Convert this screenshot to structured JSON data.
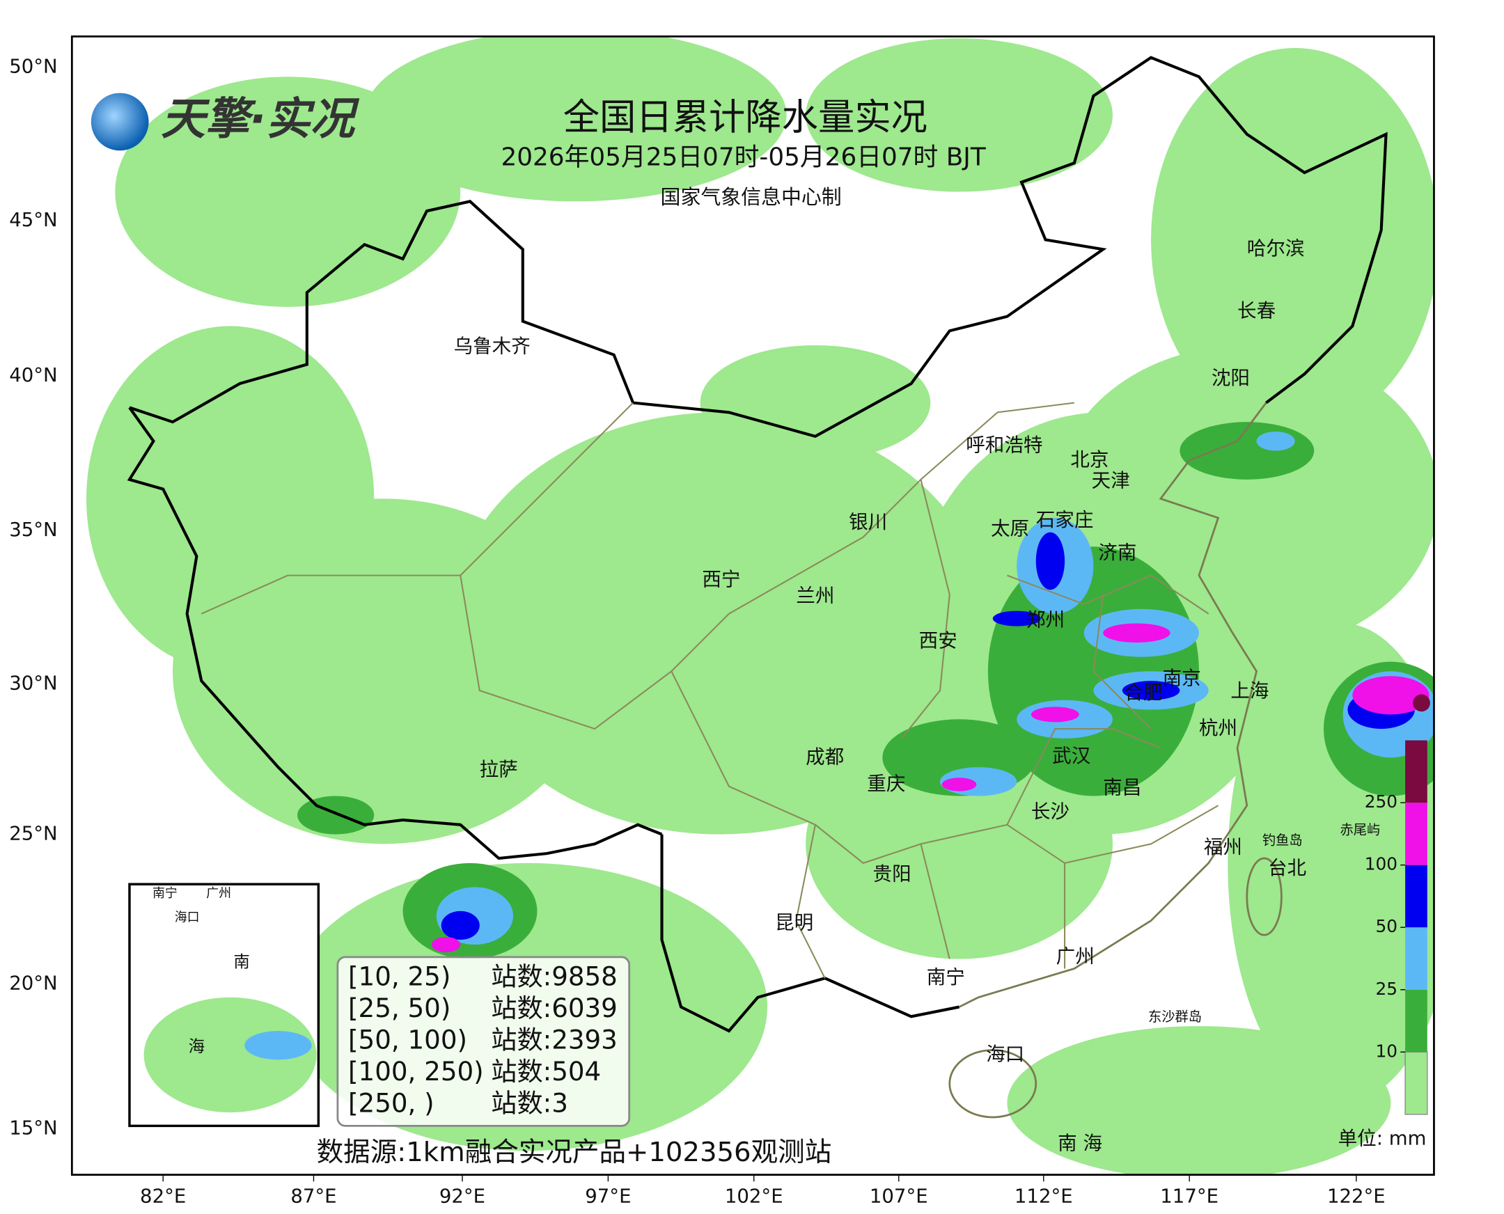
{
  "header": {
    "logo": "天擎·实况",
    "title": "全国日累计降水量实况",
    "subtitle": "2026年05月25日07时-05月26日07时 BJT",
    "credit": "国家气象信息中心制"
  },
  "axes": {
    "lat_labels": [
      "50°N",
      "45°N",
      "40°N",
      "35°N",
      "30°N",
      "25°N",
      "20°N",
      "15°N"
    ],
    "lon_labels": [
      "82°E",
      "87°E",
      "92°E",
      "97°E",
      "102°E",
      "107°E",
      "112°E",
      "117°E",
      "122°E"
    ]
  },
  "cities": [
    "乌鲁木齐",
    "哈尔滨",
    "长春",
    "沈阳",
    "呼和浩特",
    "北京",
    "天津",
    "银川",
    "太原",
    "石家庄",
    "济南",
    "西宁",
    "兰州",
    "郑州",
    "西安",
    "南京",
    "合肥",
    "上海",
    "杭州",
    "成都",
    "武汉",
    "拉萨",
    "重庆",
    "南昌",
    "长沙",
    "福州",
    "钓鱼岛",
    "赤尾屿",
    "台北",
    "贵阳",
    "昆明",
    "广州",
    "南宁",
    "东沙群岛",
    "海口",
    "南 海"
  ],
  "inset_labels": [
    "南宁",
    "广州",
    "海口",
    "南",
    "海"
  ],
  "legend": {
    "rows": [
      [
        "[10, 25)",
        "站数:9858"
      ],
      [
        "[25, 50)",
        "站数:6039"
      ],
      [
        "[50, 100)",
        "站数:2393"
      ],
      [
        "[100, 250)",
        "站数:504"
      ],
      [
        "[250, )",
        "站数:3"
      ]
    ]
  },
  "colorbar": {
    "ticks": [
      10,
      25,
      50,
      100,
      250
    ],
    "colors": [
      "#9ee88e",
      "#3aae3a",
      "#5cb8f5",
      "#0000f0",
      "#f010e8",
      "#7a0a40"
    ],
    "unit": "单位: mm"
  },
  "source": "数据源:1km融合实况产品+102356观测站"
}
